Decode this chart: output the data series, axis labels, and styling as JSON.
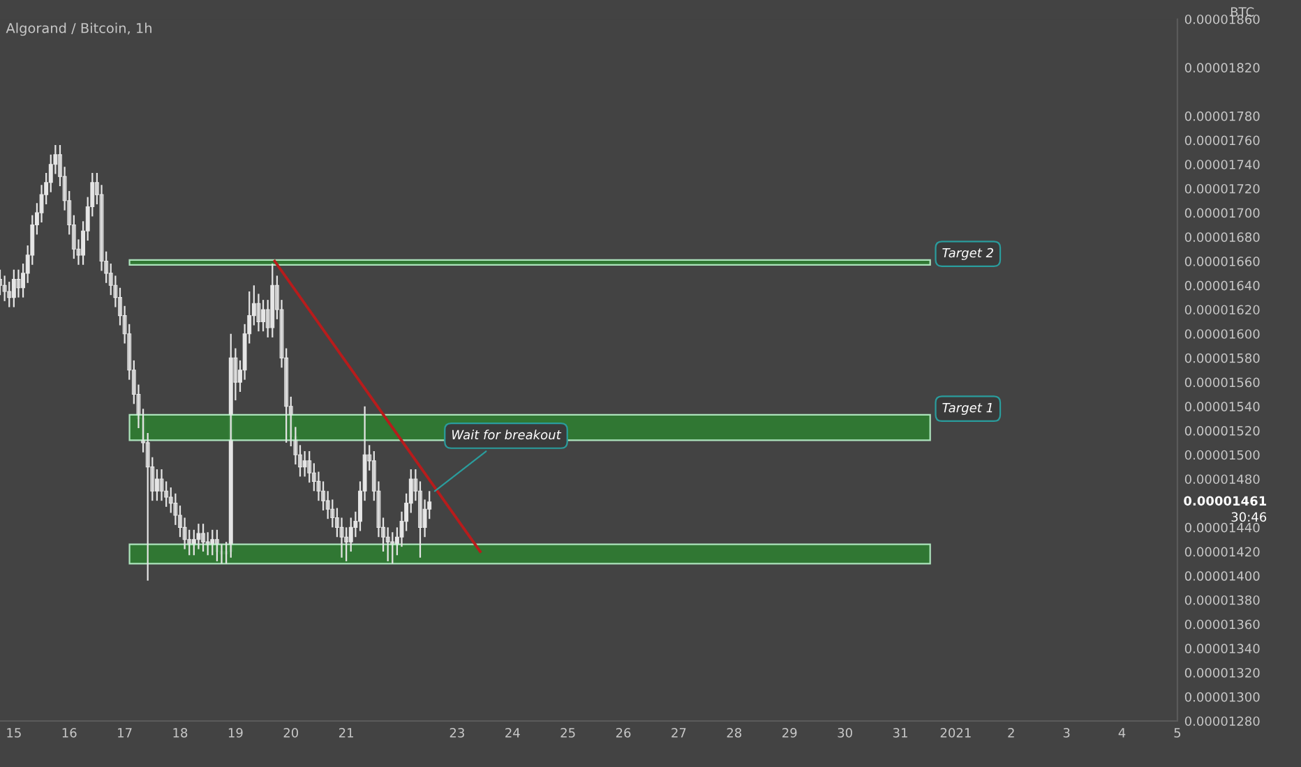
{
  "chart_data": {
    "type": "candlestick",
    "title": "Algorand / Bitcoin, 1h",
    "ylabel": "BTC",
    "color": "#e6e6e6",
    "x": [
      "2020-12-14T18:00",
      "2020-12-14T20:00",
      "2020-12-14T22:00",
      "2020-12-15T00:00",
      "2020-12-15T02:00",
      "2020-12-15T04:00",
      "2020-12-15T06:00",
      "2020-12-15T08:00",
      "2020-12-15T10:00",
      "2020-12-15T12:00",
      "2020-12-15T14:00",
      "2020-12-15T16:00",
      "2020-12-15T18:00",
      "2020-12-15T20:00",
      "2020-12-15T22:00",
      "2020-12-16T00:00",
      "2020-12-16T02:00",
      "2020-12-16T04:00",
      "2020-12-16T06:00",
      "2020-12-16T08:00",
      "2020-12-16T10:00",
      "2020-12-16T12:00",
      "2020-12-16T14:00",
      "2020-12-16T16:00",
      "2020-12-16T18:00",
      "2020-12-16T20:00",
      "2020-12-16T22:00",
      "2020-12-17T00:00",
      "2020-12-17T02:00",
      "2020-12-17T04:00",
      "2020-12-17T06:00",
      "2020-12-17T08:00",
      "2020-12-17T10:00",
      "2020-12-17T12:00",
      "2020-12-17T14:00",
      "2020-12-17T16:00",
      "2020-12-17T18:00",
      "2020-12-17T20:00",
      "2020-12-17T22:00",
      "2020-12-18T00:00",
      "2020-12-18T02:00",
      "2020-12-18T04:00",
      "2020-12-18T06:00",
      "2020-12-18T08:00",
      "2020-12-18T10:00",
      "2020-12-18T12:00",
      "2020-12-18T14:00",
      "2020-12-18T16:00",
      "2020-12-18T18:00",
      "2020-12-18T20:00",
      "2020-12-18T22:00",
      "2020-12-19T00:00",
      "2020-12-19T02:00",
      "2020-12-19T04:00",
      "2020-12-19T06:00",
      "2020-12-19T08:00",
      "2020-12-19T10:00",
      "2020-12-19T12:00",
      "2020-12-19T14:00",
      "2020-12-19T16:00",
      "2020-12-19T18:00",
      "2020-12-19T20:00",
      "2020-12-19T22:00",
      "2020-12-20T00:00",
      "2020-12-20T02:00",
      "2020-12-20T04:00",
      "2020-12-20T06:00",
      "2020-12-20T08:00",
      "2020-12-20T10:00",
      "2020-12-20T12:00",
      "2020-12-20T14:00",
      "2020-12-20T16:00",
      "2020-12-20T18:00",
      "2020-12-20T20:00",
      "2020-12-20T22:00",
      "2020-12-21T00:00",
      "2020-12-21T02:00",
      "2020-12-21T04:00",
      "2020-12-21T06:00",
      "2020-12-21T08:00",
      "2020-12-21T10:00",
      "2020-12-21T12:00",
      "2020-12-21T14:00",
      "2020-12-21T16:00",
      "2020-12-21T18:00",
      "2020-12-21T20:00",
      "2020-12-21T22:00",
      "2020-12-22T00:00",
      "2020-12-22T02:00",
      "2020-12-22T04:00",
      "2020-12-22T06:00",
      "2020-12-22T08:00",
      "2020-12-22T10:00",
      "2020-12-22T12:00"
    ],
    "ohlc": [
      [
        1.645e-05,
        1.653e-05,
        1.632e-05,
        1.64e-05
      ],
      [
        1.64e-05,
        1.648e-05,
        1.627e-05,
        1.635e-05
      ],
      [
        1.635e-05,
        1.643e-05,
        1.622e-05,
        1.63e-05
      ],
      [
        1.63e-05,
        1.653e-05,
        1.622e-05,
        1.645e-05
      ],
      [
        1.645e-05,
        1.653e-05,
        1.63e-05,
        1.638e-05
      ],
      [
        1.638e-05,
        1.658e-05,
        1.63e-05,
        1.65e-05
      ],
      [
        1.65e-05,
        1.673e-05,
        1.642e-05,
        1.665e-05
      ],
      [
        1.665e-05,
        1.698e-05,
        1.657e-05,
        1.69e-05
      ],
      [
        1.69e-05,
        1.708e-05,
        1.682e-05,
        1.7e-05
      ],
      [
        1.7e-05,
        1.723e-05,
        1.692e-05,
        1.715e-05
      ],
      [
        1.715e-05,
        1.733e-05,
        1.707e-05,
        1.725e-05
      ],
      [
        1.725e-05,
        1.748e-05,
        1.717e-05,
        1.74e-05
      ],
      [
        1.74e-05,
        1.756e-05,
        1.732e-05,
        1.748e-05
      ],
      [
        1.748e-05,
        1.756e-05,
        1.722e-05,
        1.73e-05
      ],
      [
        1.73e-05,
        1.738e-05,
        1.702e-05,
        1.71e-05
      ],
      [
        1.71e-05,
        1.718e-05,
        1.682e-05,
        1.69e-05
      ],
      [
        1.69e-05,
        1.698e-05,
        1.662e-05,
        1.67e-05
      ],
      [
        1.67e-05,
        1.678e-05,
        1.657e-05,
        1.665e-05
      ],
      [
        1.665e-05,
        1.693e-05,
        1.657e-05,
        1.685e-05
      ],
      [
        1.685e-05,
        1.713e-05,
        1.677e-05,
        1.705e-05
      ],
      [
        1.705e-05,
        1.733e-05,
        1.697e-05,
        1.725e-05
      ],
      [
        1.725e-05,
        1.733e-05,
        1.707e-05,
        1.715e-05
      ],
      [
        1.715e-05,
        1.723e-05,
        1.652e-05,
        1.66e-05
      ],
      [
        1.66e-05,
        1.668e-05,
        1.642e-05,
        1.65e-05
      ],
      [
        1.65e-05,
        1.658e-05,
        1.632e-05,
        1.64e-05
      ],
      [
        1.64e-05,
        1.648e-05,
        1.622e-05,
        1.63e-05
      ],
      [
        1.63e-05,
        1.638e-05,
        1.607e-05,
        1.615e-05
      ],
      [
        1.615e-05,
        1.623e-05,
        1.592e-05,
        1.6e-05
      ],
      [
        1.6e-05,
        1.608e-05,
        1.562e-05,
        1.57e-05
      ],
      [
        1.57e-05,
        1.578e-05,
        1.542e-05,
        1.55e-05
      ],
      [
        1.55e-05,
        1.558e-05,
        1.522e-05,
        1.53e-05
      ],
      [
        1.53e-05,
        1.538e-05,
        1.502e-05,
        1.51e-05
      ],
      [
        1.51e-05,
        1.518e-05,
        1.396e-05,
        1.49e-05
      ],
      [
        1.49e-05,
        1.498e-05,
        1.462e-05,
        1.47e-05
      ],
      [
        1.47e-05,
        1.488e-05,
        1.462e-05,
        1.48e-05
      ],
      [
        1.48e-05,
        1.488e-05,
        1.462e-05,
        1.47e-05
      ],
      [
        1.47e-05,
        1.478e-05,
        1.457e-05,
        1.465e-05
      ],
      [
        1.465e-05,
        1.473e-05,
        1.452e-05,
        1.46e-05
      ],
      [
        1.46e-05,
        1.468e-05,
        1.442e-05,
        1.45e-05
      ],
      [
        1.45e-05,
        1.458e-05,
        1.432e-05,
        1.44e-05
      ],
      [
        1.44e-05,
        1.448e-05,
        1.422e-05,
        1.43e-05
      ],
      [
        1.43e-05,
        1.438e-05,
        1.417e-05,
        1.425e-05
      ],
      [
        1.425e-05,
        1.438e-05,
        1.417e-05,
        1.43e-05
      ],
      [
        1.43e-05,
        1.443e-05,
        1.422e-05,
        1.435e-05
      ],
      [
        1.435e-05,
        1.443e-05,
        1.42e-05,
        1.428e-05
      ],
      [
        1.428e-05,
        1.436e-05,
        1.417e-05,
        1.425e-05
      ],
      [
        1.425e-05,
        1.438e-05,
        1.417e-05,
        1.43e-05
      ],
      [
        1.43e-05,
        1.438e-05,
        1.412e-05,
        1.42e-05
      ],
      [
        1.42e-05,
        1.426e-05,
        1.41e-05,
        1.418e-05
      ],
      [
        1.418e-05,
        1.428e-05,
        1.41e-05,
        1.42e-05
      ],
      [
        1.42e-05,
        1.6e-05,
        1.415e-05,
        1.58e-05
      ],
      [
        1.58e-05,
        1.588e-05,
        1.545e-05,
        1.56e-05
      ],
      [
        1.56e-05,
        1.578e-05,
        1.552e-05,
        1.57e-05
      ],
      [
        1.57e-05,
        1.608e-05,
        1.562e-05,
        1.6e-05
      ],
      [
        1.6e-05,
        1.635e-05,
        1.592e-05,
        1.615e-05
      ],
      [
        1.615e-05,
        1.64e-05,
        1.607e-05,
        1.625e-05
      ],
      [
        1.625e-05,
        1.633e-05,
        1.602e-05,
        1.61e-05
      ],
      [
        1.61e-05,
        1.628e-05,
        1.602e-05,
        1.62e-05
      ],
      [
        1.62e-05,
        1.628e-05,
        1.597e-05,
        1.605e-05
      ],
      [
        1.605e-05,
        1.658e-05,
        1.597e-05,
        1.64e-05
      ],
      [
        1.64e-05,
        1.648e-05,
        1.612e-05,
        1.62e-05
      ],
      [
        1.62e-05,
        1.628e-05,
        1.572e-05,
        1.58e-05
      ],
      [
        1.58e-05,
        1.588e-05,
        1.51e-05,
        1.54e-05
      ],
      [
        1.54e-05,
        1.548e-05,
        1.507e-05,
        1.515e-05
      ],
      [
        1.515e-05,
        1.523e-05,
        1.492e-05,
        1.5e-05
      ],
      [
        1.5e-05,
        1.508e-05,
        1.482e-05,
        1.49e-05
      ],
      [
        1.49e-05,
        1.503e-05,
        1.482e-05,
        1.495e-05
      ],
      [
        1.495e-05,
        1.503e-05,
        1.477e-05,
        1.485e-05
      ],
      [
        1.485e-05,
        1.493e-05,
        1.47e-05,
        1.478e-05
      ],
      [
        1.478e-05,
        1.486e-05,
        1.462e-05,
        1.47e-05
      ],
      [
        1.47e-05,
        1.478e-05,
        1.454e-05,
        1.462e-05
      ],
      [
        1.462e-05,
        1.47e-05,
        1.447e-05,
        1.455e-05
      ],
      [
        1.455e-05,
        1.463e-05,
        1.44e-05,
        1.448e-05
      ],
      [
        1.448e-05,
        1.456e-05,
        1.432e-05,
        1.44e-05
      ],
      [
        1.44e-05,
        1.448e-05,
        1.415e-05,
        1.432e-05
      ],
      [
        1.432e-05,
        1.44e-05,
        1.412e-05,
        1.428e-05
      ],
      [
        1.428e-05,
        1.448e-05,
        1.42e-05,
        1.44e-05
      ],
      [
        1.44e-05,
        1.453e-05,
        1.432e-05,
        1.445e-05
      ],
      [
        1.445e-05,
        1.478e-05,
        1.437e-05,
        1.47e-05
      ],
      [
        1.47e-05,
        1.54e-05,
        1.462e-05,
        1.5e-05
      ],
      [
        1.5e-05,
        1.508e-05,
        1.487e-05,
        1.495e-05
      ],
      [
        1.495e-05,
        1.503e-05,
        1.462e-05,
        1.47e-05
      ],
      [
        1.47e-05,
        1.478e-05,
        1.432e-05,
        1.44e-05
      ],
      [
        1.44e-05,
        1.448e-05,
        1.42e-05,
        1.432e-05
      ],
      [
        1.432e-05,
        1.44e-05,
        1.412e-05,
        1.428e-05
      ],
      [
        1.428e-05,
        1.436e-05,
        1.41e-05,
        1.425e-05
      ],
      [
        1.425e-05,
        1.44e-05,
        1.417e-05,
        1.432e-05
      ],
      [
        1.432e-05,
        1.453e-05,
        1.424e-05,
        1.445e-05
      ],
      [
        1.445e-05,
        1.468e-05,
        1.437e-05,
        1.46e-05
      ],
      [
        1.46e-05,
        1.488e-05,
        1.452e-05,
        1.48e-05
      ],
      [
        1.48e-05,
        1.488e-05,
        1.462e-05,
        1.47e-05
      ],
      [
        1.47e-05,
        1.478e-05,
        1.415e-05,
        1.44e-05
      ],
      [
        1.44e-05,
        1.463e-05,
        1.432e-05,
        1.455e-05
      ],
      [
        1.455e-05,
        1.47e-05,
        1.447e-05,
        1.461e-05
      ]
    ],
    "series": [
      {
        "type": "line",
        "color": "#b71c1c",
        "x": [
          "2020-12-19T17:00",
          "2020-12-23T10:00"
        ],
        "values": [
          1.66e-05,
          1.42e-05
        ]
      }
    ],
    "bands": [
      {
        "axis": "y",
        "from": 1.657e-05,
        "to": 1.661e-05,
        "label": "Target 2",
        "color": "#2e7d32"
      },
      {
        "axis": "y",
        "from": 1.512e-05,
        "to": 1.533e-05,
        "label": "Target 1",
        "color": "#2e7d32"
      },
      {
        "axis": "y",
        "from": 1.41e-05,
        "to": 1.426e-05,
        "color": "#2e7d32"
      }
    ],
    "annotations": [
      {
        "text": "Wait for breakout",
        "x": "2020-12-22T13:00",
        "y": 1.468e-05
      },
      "0.00001461",
      "30:46"
    ],
    "xlim": [
      "2020-12-14T18:00",
      "2021-01-05T00:00"
    ],
    "xticks": [
      {
        "value": "2020-12-15",
        "label": "15"
      },
      {
        "value": "2020-12-16",
        "label": "16"
      },
      {
        "value": "2020-12-17",
        "label": "17"
      },
      {
        "value": "2020-12-18",
        "label": "18"
      },
      {
        "value": "2020-12-19",
        "label": "19"
      },
      {
        "value": "2020-12-20",
        "label": "20"
      },
      {
        "value": "2020-12-21",
        "label": "21"
      },
      {
        "value": "2020-12-23",
        "label": "23"
      },
      {
        "value": "2020-12-24",
        "label": "24"
      },
      {
        "value": "2020-12-25",
        "label": "25"
      },
      {
        "value": "2020-12-26",
        "label": "26"
      },
      {
        "value": "2020-12-27",
        "label": "27"
      },
      {
        "value": "2020-12-28",
        "label": "28"
      },
      {
        "value": "2020-12-29",
        "label": "29"
      },
      {
        "value": "2020-12-30",
        "label": "30"
      },
      {
        "value": "2020-12-31",
        "label": "31"
      },
      {
        "value": "2021-01-01",
        "label": "2021"
      },
      {
        "value": "2021-01-02",
        "label": "2"
      },
      {
        "value": "2021-01-03",
        "label": "3"
      },
      {
        "value": "2021-01-04",
        "label": "4"
      },
      {
        "value": "2021-01-05",
        "label": "5"
      }
    ],
    "ylim": [
      1.28e-05,
      1.86e-05
    ],
    "yticks": [
      {
        "value": 1.28e-05,
        "label": "0.00001280"
      },
      {
        "value": 1.3e-05,
        "label": "0.00001300"
      },
      {
        "value": 1.32e-05,
        "label": "0.00001320"
      },
      {
        "value": 1.34e-05,
        "label": "0.00001340"
      },
      {
        "value": 1.36e-05,
        "label": "0.00001360"
      },
      {
        "value": 1.38e-05,
        "label": "0.00001380"
      },
      {
        "value": 1.4e-05,
        "label": "0.00001400"
      },
      {
        "value": 1.42e-05,
        "label": "0.00001420"
      },
      {
        "value": 1.44e-05,
        "label": "0.00001440"
      },
      {
        "value": 1.48e-05,
        "label": "0.00001480"
      },
      {
        "value": 1.5e-05,
        "label": "0.00001500"
      },
      {
        "value": 1.52e-05,
        "label": "0.00001520"
      },
      {
        "value": 1.54e-05,
        "label": "0.00001540"
      },
      {
        "value": 1.56e-05,
        "label": "0.00001560"
      },
      {
        "value": 1.58e-05,
        "label": "0.00001580"
      },
      {
        "value": 1.6e-05,
        "label": "0.00001600"
      },
      {
        "value": 1.62e-05,
        "label": "0.00001620"
      },
      {
        "value": 1.64e-05,
        "label": "0.00001640"
      },
      {
        "value": 1.66e-05,
        "label": "0.00001660"
      },
      {
        "value": 1.68e-05,
        "label": "0.00001680"
      },
      {
        "value": 1.7e-05,
        "label": "0.00001700"
      },
      {
        "value": 1.72e-05,
        "label": "0.00001720"
      },
      {
        "value": 1.74e-05,
        "label": "0.00001740"
      },
      {
        "value": 1.76e-05,
        "label": "0.00001760"
      },
      {
        "value": 1.78e-05,
        "label": "0.00001780"
      },
      {
        "value": 1.82e-05,
        "label": "0.00001820"
      },
      {
        "value": 1.86e-05,
        "label": "0.00001860"
      }
    ],
    "grid": false,
    "legend": false
  }
}
